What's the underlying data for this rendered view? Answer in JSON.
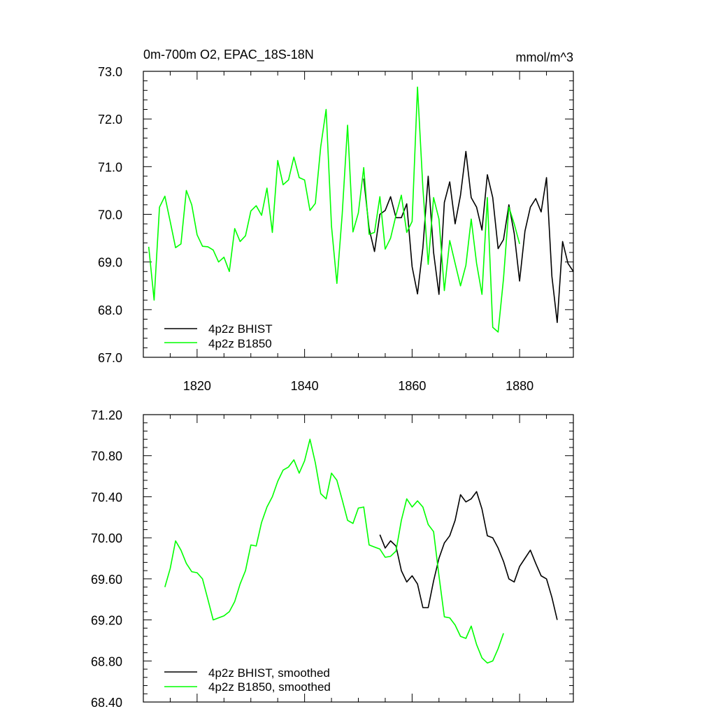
{
  "chart_data": [
    {
      "type": "line",
      "title": "0m-700m O2, EPAC_18S-18N",
      "units": "mmol/m^3",
      "xlim": [
        1810,
        1890
      ],
      "ylim": [
        67.0,
        73.0
      ],
      "x_ticks": [
        1820,
        1840,
        1860,
        1880
      ],
      "x_tick_labels": [
        "1820",
        "1840",
        "1860",
        "1880"
      ],
      "y_ticks": [
        67.0,
        68.0,
        69.0,
        70.0,
        71.0,
        72.0,
        73.0
      ],
      "y_tick_labels": [
        "67.0",
        "68.0",
        "69.0",
        "70.0",
        "71.0",
        "72.0",
        "73.0"
      ],
      "legend_position": "bottom-left",
      "series": [
        {
          "name": "4p2z BHIST",
          "color": "#000000",
          "x_start": 1851,
          "values": [
            70.75,
            69.7,
            69.22,
            70.0,
            70.08,
            70.37,
            69.93,
            69.93,
            70.22,
            68.9,
            68.33,
            69.3,
            70.8,
            69.2,
            68.32,
            70.25,
            70.68,
            69.8,
            70.4,
            71.32,
            70.35,
            70.15,
            69.67,
            70.83,
            70.35,
            69.28,
            69.47,
            70.2,
            69.6,
            68.6,
            69.65,
            70.15,
            70.33,
            70.05,
            70.77,
            68.7,
            67.73,
            69.43,
            68.97,
            68.8
          ]
        },
        {
          "name": "4p2z B1850",
          "color": "#00ff00",
          "x_start": 1811,
          "values": [
            69.32,
            68.2,
            70.15,
            70.38,
            69.85,
            69.3,
            69.38,
            70.5,
            70.2,
            69.57,
            69.33,
            69.32,
            69.25,
            69.0,
            69.1,
            68.8,
            69.7,
            69.43,
            69.55,
            70.07,
            70.18,
            69.98,
            70.55,
            69.62,
            71.13,
            70.62,
            70.72,
            71.2,
            70.77,
            70.72,
            70.08,
            70.23,
            71.42,
            72.2,
            69.75,
            68.55,
            70.0,
            71.87,
            69.63,
            70.03,
            70.98,
            69.58,
            69.62,
            70.37,
            69.27,
            69.5,
            69.98,
            70.4,
            69.62,
            69.85,
            72.67,
            70.55,
            68.95,
            70.35,
            69.9,
            68.4,
            69.45,
            68.97,
            68.5,
            68.93,
            69.9,
            68.97,
            68.32,
            70.35,
            67.63,
            67.53,
            68.65,
            70.15,
            69.8,
            69.38
          ]
        }
      ]
    },
    {
      "type": "line",
      "title": "",
      "xlim": [
        1810,
        1890
      ],
      "ylim": [
        68.4,
        71.2
      ],
      "x_ticks": [
        1820,
        1840,
        1860,
        1880
      ],
      "y_ticks": [
        68.4,
        68.8,
        69.2,
        69.6,
        70.0,
        70.4,
        70.8,
        71.2
      ],
      "y_tick_labels": [
        "68.40",
        "68.80",
        "69.20",
        "69.60",
        "70.00",
        "70.40",
        "70.80",
        "71.20"
      ],
      "legend_position": "bottom-left",
      "series": [
        {
          "name": "4p2z BHIST, smoothed",
          "color": "#000000",
          "x_start": 1854,
          "values": [
            70.03,
            69.9,
            69.97,
            69.92,
            69.68,
            69.57,
            69.63,
            69.55,
            69.32,
            69.32,
            69.58,
            69.8,
            69.95,
            70.02,
            70.17,
            70.42,
            70.35,
            70.38,
            70.45,
            70.28,
            70.02,
            70.0,
            69.9,
            69.77,
            69.6,
            69.57,
            69.72,
            69.8,
            69.88,
            69.75,
            69.63,
            69.6,
            69.42,
            69.2
          ]
        },
        {
          "name": "4p2z B1850, smoothed",
          "color": "#00ff00",
          "x_start": 1814,
          "values": [
            69.52,
            69.7,
            69.97,
            69.88,
            69.75,
            69.67,
            69.66,
            69.6,
            69.4,
            69.2,
            69.22,
            69.24,
            69.28,
            69.38,
            69.55,
            69.68,
            69.93,
            69.92,
            70.15,
            70.3,
            70.4,
            70.55,
            70.66,
            70.69,
            70.76,
            70.63,
            70.75,
            70.96,
            70.73,
            70.43,
            70.38,
            70.63,
            70.56,
            70.37,
            70.17,
            70.14,
            70.29,
            70.3,
            69.93,
            69.91,
            69.89,
            69.81,
            69.82,
            69.87,
            70.17,
            70.38,
            70.3,
            70.36,
            70.3,
            70.13,
            70.06,
            69.63,
            69.23,
            69.22,
            69.15,
            69.04,
            69.02,
            69.14,
            68.96,
            68.83,
            68.78,
            68.8,
            68.92,
            69.07
          ]
        }
      ]
    }
  ]
}
